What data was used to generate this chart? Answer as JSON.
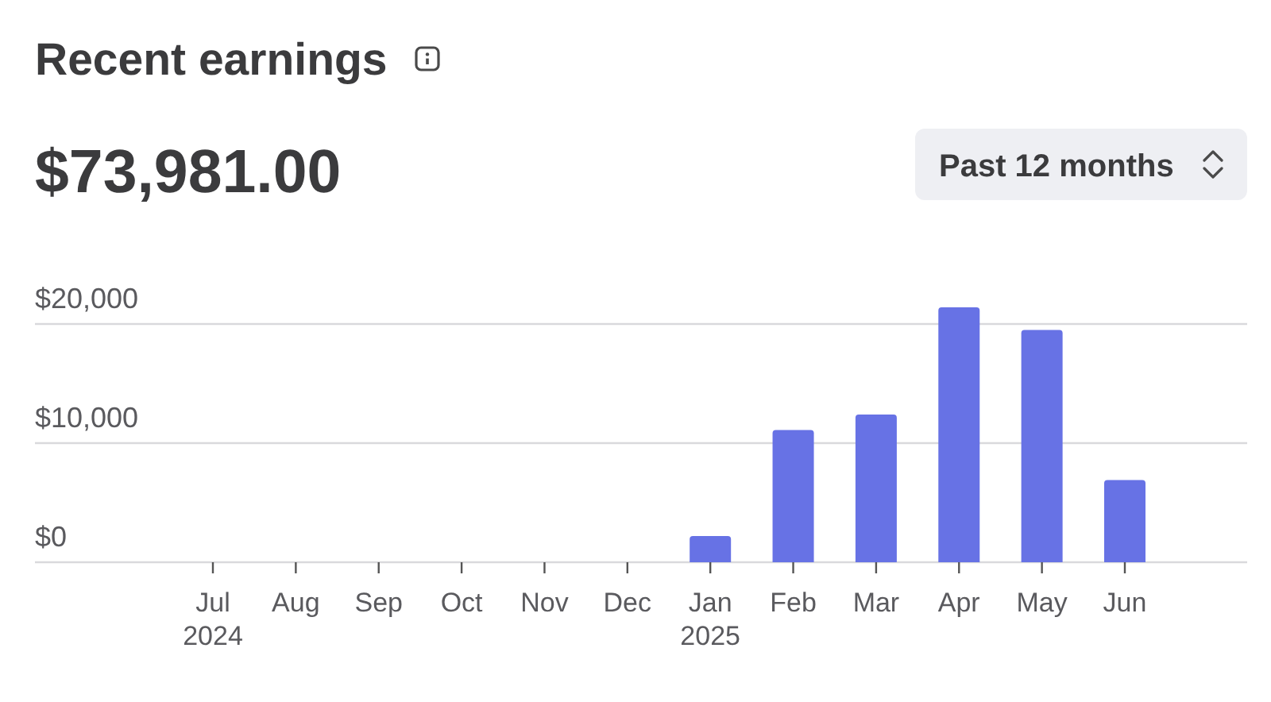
{
  "chart_data": {
    "type": "bar",
    "title": "Recent earnings",
    "subtitle": "$73,981.00",
    "annotations": [
      "Past 12 months"
    ],
    "categories": [
      "Jul 2024",
      "Aug",
      "Sep",
      "Oct",
      "Nov",
      "Dec",
      "Jan 2025",
      "Feb",
      "Mar",
      "Apr",
      "May",
      "Jun"
    ],
    "values": [
      0,
      0,
      0,
      0,
      0,
      0,
      2200,
      11100,
      12400,
      21400,
      19500,
      6900
    ],
    "color": "#6772e5",
    "ylim": [
      0,
      21400
    ],
    "yticks": [
      {
        "value": 0,
        "label": "$0"
      },
      {
        "value": 10000,
        "label": "$10,000"
      },
      {
        "value": 20000,
        "label": "$20,000"
      }
    ],
    "grid": "y"
  }
}
